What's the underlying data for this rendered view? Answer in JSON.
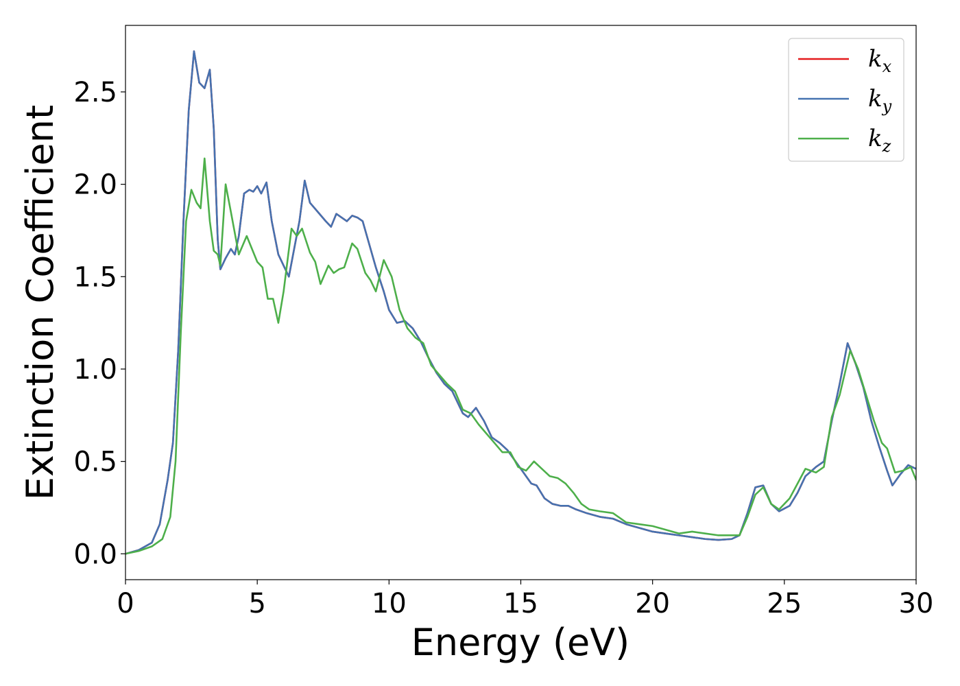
{
  "chart_data": {
    "type": "line",
    "title": "",
    "xlabel": "Energy (eV)",
    "ylabel": "Extinction Coefficient",
    "xlim": [
      0,
      30
    ],
    "ylim": [
      -0.14,
      2.86
    ],
    "xticks": [
      0,
      5,
      10,
      15,
      20,
      25,
      30
    ],
    "xtick_labels": [
      "0",
      "5",
      "10",
      "15",
      "20",
      "25",
      "30"
    ],
    "yticks": [
      0.0,
      0.5,
      1.0,
      1.5,
      2.0,
      2.5
    ],
    "ytick_labels": [
      "0.0",
      "0.5",
      "1.0",
      "1.5",
      "2.0",
      "2.5"
    ],
    "grid": false,
    "legend_position": "top-right",
    "series": [
      {
        "name": "k_x",
        "legend_base": "k",
        "legend_sub": "x",
        "color": "#e41a1c",
        "points": [
          [
            0,
            0
          ],
          [
            0.5,
            0.02
          ],
          [
            1.0,
            0.06
          ],
          [
            1.3,
            0.16
          ],
          [
            1.6,
            0.4
          ],
          [
            1.8,
            0.6
          ],
          [
            2.0,
            1.1
          ],
          [
            2.2,
            1.8
          ],
          [
            2.4,
            2.4
          ],
          [
            2.6,
            2.72
          ],
          [
            2.8,
            2.55
          ],
          [
            3.0,
            2.52
          ],
          [
            3.2,
            2.62
          ],
          [
            3.35,
            2.3
          ],
          [
            3.5,
            1.7
          ],
          [
            3.6,
            1.54
          ],
          [
            3.8,
            1.6
          ],
          [
            4.0,
            1.65
          ],
          [
            4.15,
            1.62
          ],
          [
            4.3,
            1.72
          ],
          [
            4.5,
            1.95
          ],
          [
            4.7,
            1.97
          ],
          [
            4.85,
            1.96
          ],
          [
            5.0,
            1.99
          ],
          [
            5.15,
            1.95
          ],
          [
            5.35,
            2.01
          ],
          [
            5.55,
            1.8
          ],
          [
            5.8,
            1.62
          ],
          [
            6.0,
            1.56
          ],
          [
            6.2,
            1.5
          ],
          [
            6.4,
            1.65
          ],
          [
            6.6,
            1.8
          ],
          [
            6.8,
            2.02
          ],
          [
            7.0,
            1.9
          ],
          [
            7.3,
            1.85
          ],
          [
            7.6,
            1.8
          ],
          [
            7.8,
            1.77
          ],
          [
            8.0,
            1.84
          ],
          [
            8.2,
            1.82
          ],
          [
            8.4,
            1.8
          ],
          [
            8.6,
            1.83
          ],
          [
            8.8,
            1.82
          ],
          [
            9.0,
            1.8
          ],
          [
            9.2,
            1.7
          ],
          [
            9.5,
            1.55
          ],
          [
            9.8,
            1.42
          ],
          [
            10.0,
            1.32
          ],
          [
            10.3,
            1.25
          ],
          [
            10.6,
            1.26
          ],
          [
            10.9,
            1.22
          ],
          [
            11.2,
            1.15
          ],
          [
            11.5,
            1.06
          ],
          [
            11.8,
            0.98
          ],
          [
            12.1,
            0.92
          ],
          [
            12.4,
            0.88
          ],
          [
            12.8,
            0.76
          ],
          [
            13.0,
            0.74
          ],
          [
            13.3,
            0.79
          ],
          [
            13.6,
            0.72
          ],
          [
            13.9,
            0.63
          ],
          [
            14.2,
            0.6
          ],
          [
            14.5,
            0.56
          ],
          [
            14.8,
            0.5
          ],
          [
            15.1,
            0.44
          ],
          [
            15.4,
            0.38
          ],
          [
            15.6,
            0.37
          ],
          [
            15.9,
            0.3
          ],
          [
            16.2,
            0.27
          ],
          [
            16.5,
            0.26
          ],
          [
            16.8,
            0.26
          ],
          [
            17.1,
            0.24
          ],
          [
            17.5,
            0.22
          ],
          [
            18.0,
            0.2
          ],
          [
            18.5,
            0.19
          ],
          [
            19.0,
            0.16
          ],
          [
            19.5,
            0.14
          ],
          [
            20.0,
            0.12
          ],
          [
            20.5,
            0.11
          ],
          [
            21.0,
            0.1
          ],
          [
            21.5,
            0.09
          ],
          [
            22.0,
            0.08
          ],
          [
            22.5,
            0.075
          ],
          [
            23.0,
            0.08
          ],
          [
            23.3,
            0.1
          ],
          [
            23.6,
            0.22
          ],
          [
            23.9,
            0.36
          ],
          [
            24.2,
            0.37
          ],
          [
            24.5,
            0.27
          ],
          [
            24.8,
            0.23
          ],
          [
            25.2,
            0.26
          ],
          [
            25.5,
            0.33
          ],
          [
            25.8,
            0.42
          ],
          [
            26.2,
            0.47
          ],
          [
            26.5,
            0.5
          ],
          [
            26.8,
            0.72
          ],
          [
            27.1,
            0.92
          ],
          [
            27.4,
            1.14
          ],
          [
            27.7,
            1.03
          ],
          [
            28.0,
            0.9
          ],
          [
            28.3,
            0.72
          ],
          [
            28.6,
            0.58
          ],
          [
            28.9,
            0.45
          ],
          [
            29.1,
            0.37
          ],
          [
            29.4,
            0.43
          ],
          [
            29.7,
            0.48
          ],
          [
            30,
            0.46
          ]
        ]
      },
      {
        "name": "k_y",
        "legend_base": "k",
        "legend_sub": "y",
        "color": "#4572b0",
        "points": [
          [
            0,
            0
          ],
          [
            0.5,
            0.02
          ],
          [
            1.0,
            0.06
          ],
          [
            1.3,
            0.16
          ],
          [
            1.6,
            0.4
          ],
          [
            1.8,
            0.6
          ],
          [
            2.0,
            1.1
          ],
          [
            2.2,
            1.8
          ],
          [
            2.4,
            2.4
          ],
          [
            2.6,
            2.72
          ],
          [
            2.8,
            2.55
          ],
          [
            3.0,
            2.52
          ],
          [
            3.2,
            2.62
          ],
          [
            3.35,
            2.3
          ],
          [
            3.5,
            1.7
          ],
          [
            3.6,
            1.54
          ],
          [
            3.8,
            1.6
          ],
          [
            4.0,
            1.65
          ],
          [
            4.15,
            1.62
          ],
          [
            4.3,
            1.72
          ],
          [
            4.5,
            1.95
          ],
          [
            4.7,
            1.97
          ],
          [
            4.85,
            1.96
          ],
          [
            5.0,
            1.99
          ],
          [
            5.15,
            1.95
          ],
          [
            5.35,
            2.01
          ],
          [
            5.55,
            1.8
          ],
          [
            5.8,
            1.62
          ],
          [
            6.0,
            1.56
          ],
          [
            6.2,
            1.5
          ],
          [
            6.4,
            1.65
          ],
          [
            6.6,
            1.8
          ],
          [
            6.8,
            2.02
          ],
          [
            7.0,
            1.9
          ],
          [
            7.3,
            1.85
          ],
          [
            7.6,
            1.8
          ],
          [
            7.8,
            1.77
          ],
          [
            8.0,
            1.84
          ],
          [
            8.2,
            1.82
          ],
          [
            8.4,
            1.8
          ],
          [
            8.6,
            1.83
          ],
          [
            8.8,
            1.82
          ],
          [
            9.0,
            1.8
          ],
          [
            9.2,
            1.7
          ],
          [
            9.5,
            1.55
          ],
          [
            9.8,
            1.42
          ],
          [
            10.0,
            1.32
          ],
          [
            10.3,
            1.25
          ],
          [
            10.6,
            1.26
          ],
          [
            10.9,
            1.22
          ],
          [
            11.2,
            1.15
          ],
          [
            11.5,
            1.06
          ],
          [
            11.8,
            0.98
          ],
          [
            12.1,
            0.92
          ],
          [
            12.4,
            0.88
          ],
          [
            12.8,
            0.76
          ],
          [
            13.0,
            0.74
          ],
          [
            13.3,
            0.79
          ],
          [
            13.6,
            0.72
          ],
          [
            13.9,
            0.63
          ],
          [
            14.2,
            0.6
          ],
          [
            14.5,
            0.56
          ],
          [
            14.8,
            0.5
          ],
          [
            15.1,
            0.44
          ],
          [
            15.4,
            0.38
          ],
          [
            15.6,
            0.37
          ],
          [
            15.9,
            0.3
          ],
          [
            16.2,
            0.27
          ],
          [
            16.5,
            0.26
          ],
          [
            16.8,
            0.26
          ],
          [
            17.1,
            0.24
          ],
          [
            17.5,
            0.22
          ],
          [
            18.0,
            0.2
          ],
          [
            18.5,
            0.19
          ],
          [
            19.0,
            0.16
          ],
          [
            19.5,
            0.14
          ],
          [
            20.0,
            0.12
          ],
          [
            20.5,
            0.11
          ],
          [
            21.0,
            0.1
          ],
          [
            21.5,
            0.09
          ],
          [
            22.0,
            0.08
          ],
          [
            22.5,
            0.075
          ],
          [
            23.0,
            0.08
          ],
          [
            23.3,
            0.1
          ],
          [
            23.6,
            0.22
          ],
          [
            23.9,
            0.36
          ],
          [
            24.2,
            0.37
          ],
          [
            24.5,
            0.27
          ],
          [
            24.8,
            0.23
          ],
          [
            25.2,
            0.26
          ],
          [
            25.5,
            0.33
          ],
          [
            25.8,
            0.42
          ],
          [
            26.2,
            0.47
          ],
          [
            26.5,
            0.5
          ],
          [
            26.8,
            0.72
          ],
          [
            27.1,
            0.92
          ],
          [
            27.4,
            1.14
          ],
          [
            27.7,
            1.03
          ],
          [
            28.0,
            0.9
          ],
          [
            28.3,
            0.72
          ],
          [
            28.6,
            0.58
          ],
          [
            28.9,
            0.45
          ],
          [
            29.1,
            0.37
          ],
          [
            29.4,
            0.43
          ],
          [
            29.7,
            0.48
          ],
          [
            30,
            0.46
          ]
        ]
      },
      {
        "name": "k_z",
        "legend_base": "k",
        "legend_sub": "z",
        "color": "#4daf4a",
        "points": [
          [
            0,
            0
          ],
          [
            0.5,
            0.015
          ],
          [
            1.0,
            0.04
          ],
          [
            1.4,
            0.08
          ],
          [
            1.7,
            0.2
          ],
          [
            1.9,
            0.5
          ],
          [
            2.1,
            1.2
          ],
          [
            2.3,
            1.8
          ],
          [
            2.5,
            1.97
          ],
          [
            2.7,
            1.9
          ],
          [
            2.85,
            1.87
          ],
          [
            3.0,
            2.14
          ],
          [
            3.2,
            1.8
          ],
          [
            3.35,
            1.64
          ],
          [
            3.5,
            1.62
          ],
          [
            3.6,
            1.56
          ],
          [
            3.8,
            2.0
          ],
          [
            4.0,
            1.85
          ],
          [
            4.3,
            1.62
          ],
          [
            4.6,
            1.72
          ],
          [
            4.8,
            1.65
          ],
          [
            5.0,
            1.58
          ],
          [
            5.2,
            1.55
          ],
          [
            5.4,
            1.38
          ],
          [
            5.6,
            1.38
          ],
          [
            5.8,
            1.25
          ],
          [
            6.0,
            1.42
          ],
          [
            6.3,
            1.76
          ],
          [
            6.5,
            1.72
          ],
          [
            6.7,
            1.76
          ],
          [
            7.0,
            1.63
          ],
          [
            7.2,
            1.58
          ],
          [
            7.4,
            1.46
          ],
          [
            7.7,
            1.56
          ],
          [
            7.9,
            1.52
          ],
          [
            8.1,
            1.54
          ],
          [
            8.3,
            1.55
          ],
          [
            8.6,
            1.68
          ],
          [
            8.8,
            1.65
          ],
          [
            9.1,
            1.52
          ],
          [
            9.3,
            1.48
          ],
          [
            9.5,
            1.42
          ],
          [
            9.8,
            1.59
          ],
          [
            10.1,
            1.5
          ],
          [
            10.4,
            1.32
          ],
          [
            10.7,
            1.22
          ],
          [
            11.0,
            1.17
          ],
          [
            11.3,
            1.14
          ],
          [
            11.6,
            1.02
          ],
          [
            11.9,
            0.97
          ],
          [
            12.2,
            0.92
          ],
          [
            12.5,
            0.88
          ],
          [
            12.8,
            0.78
          ],
          [
            13.1,
            0.76
          ],
          [
            13.4,
            0.7
          ],
          [
            13.7,
            0.65
          ],
          [
            14.0,
            0.6
          ],
          [
            14.3,
            0.55
          ],
          [
            14.6,
            0.55
          ],
          [
            14.9,
            0.47
          ],
          [
            15.2,
            0.45
          ],
          [
            15.5,
            0.5
          ],
          [
            15.8,
            0.46
          ],
          [
            16.1,
            0.42
          ],
          [
            16.4,
            0.41
          ],
          [
            16.7,
            0.38
          ],
          [
            17.0,
            0.33
          ],
          [
            17.3,
            0.27
          ],
          [
            17.6,
            0.24
          ],
          [
            18.0,
            0.23
          ],
          [
            18.5,
            0.22
          ],
          [
            19.0,
            0.17
          ],
          [
            19.5,
            0.16
          ],
          [
            20.0,
            0.15
          ],
          [
            20.5,
            0.13
          ],
          [
            21.0,
            0.11
          ],
          [
            21.5,
            0.12
          ],
          [
            22.0,
            0.11
          ],
          [
            22.5,
            0.1
          ],
          [
            23.0,
            0.1
          ],
          [
            23.3,
            0.1
          ],
          [
            23.6,
            0.2
          ],
          [
            23.9,
            0.32
          ],
          [
            24.2,
            0.36
          ],
          [
            24.5,
            0.27
          ],
          [
            24.8,
            0.24
          ],
          [
            25.2,
            0.3
          ],
          [
            25.5,
            0.38
          ],
          [
            25.8,
            0.46
          ],
          [
            26.2,
            0.44
          ],
          [
            26.5,
            0.47
          ],
          [
            26.8,
            0.74
          ],
          [
            27.1,
            0.86
          ],
          [
            27.5,
            1.1
          ],
          [
            27.8,
            1.0
          ],
          [
            28.1,
            0.86
          ],
          [
            28.4,
            0.72
          ],
          [
            28.7,
            0.6
          ],
          [
            28.9,
            0.57
          ],
          [
            29.2,
            0.44
          ],
          [
            29.5,
            0.45
          ],
          [
            29.8,
            0.47
          ],
          [
            30,
            0.4
          ]
        ]
      }
    ]
  }
}
